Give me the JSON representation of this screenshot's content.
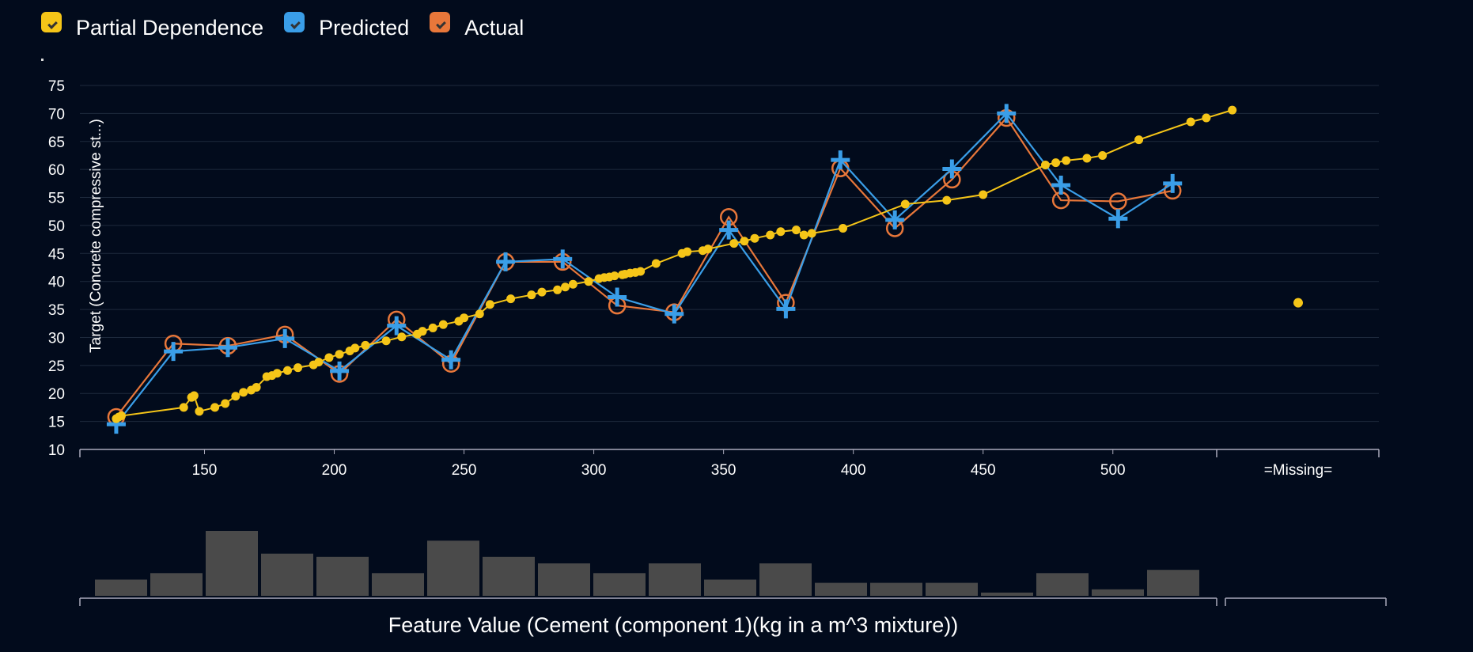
{
  "legend": {
    "items": [
      {
        "label": "Partial Dependence",
        "color": "#f5c518",
        "icon": "check-icon"
      },
      {
        "label": "Predicted",
        "color": "#3a9ee8",
        "icon": "check-icon"
      },
      {
        "label": "Actual",
        "color": "#e8773a",
        "icon": "check-icon"
      }
    ]
  },
  "chart_data": {
    "type": "line",
    "ylabel": "Target (Concrete compressive st...)",
    "xlabel": "Feature Value (Cement (component 1)(kg in a m^3 mixture))",
    "ylim": [
      10,
      75
    ],
    "yticks": [
      10,
      15,
      20,
      25,
      30,
      35,
      40,
      45,
      50,
      55,
      60,
      65,
      70,
      75
    ],
    "xlim": [
      102,
      540
    ],
    "xticks": [
      150,
      200,
      250,
      300,
      350,
      400,
      450,
      500
    ],
    "missing_label": "=Missing=",
    "grid": true,
    "legend_position": "top-left",
    "series": [
      {
        "name": "Partial Dependence",
        "color": "#f5c518",
        "x": [
          116,
          117,
          118,
          142,
          145,
          146,
          148,
          154,
          158,
          162,
          165,
          168,
          170,
          174,
          176,
          178,
          182,
          186,
          192,
          194,
          198,
          202,
          206,
          208,
          212,
          220,
          226,
          232,
          234,
          238,
          242,
          248,
          250,
          256,
          260,
          268,
          276,
          280,
          286,
          289,
          292,
          298,
          302,
          304,
          306,
          308,
          311,
          312,
          314,
          316,
          318,
          324,
          334,
          336,
          342,
          344,
          354,
          358,
          362,
          368,
          372,
          378,
          381,
          384,
          396,
          420,
          436,
          450,
          474,
          478,
          482,
          490,
          496,
          510,
          530,
          536,
          546
        ],
        "y": [
          15.5,
          15.8,
          16,
          17.5,
          19.3,
          19.6,
          16.8,
          17.5,
          18.2,
          19.5,
          20.2,
          20.6,
          21.1,
          23,
          23.2,
          23.6,
          24.1,
          24.6,
          25.1,
          25.6,
          26.4,
          27,
          27.6,
          28.1,
          28.6,
          29.4,
          30.1,
          30.6,
          31.1,
          31.7,
          32.3,
          32.9,
          33.5,
          34.2,
          35.9,
          36.9,
          37.6,
          38.1,
          38.5,
          39,
          39.5,
          40,
          40.5,
          40.7,
          40.8,
          41,
          41.2,
          41.3,
          41.5,
          41.6,
          41.8,
          43.2,
          45,
          45.3,
          45.5,
          45.8,
          46.8,
          47.2,
          47.7,
          48.3,
          48.9,
          49.2,
          48.3,
          48.6,
          49.5,
          53.8,
          54.5,
          55.5,
          60.8,
          61.2,
          61.6,
          62,
          62.5,
          65.3,
          68.5,
          69.2,
          70.6
        ],
        "missing_value": 36.2
      },
      {
        "name": "Predicted",
        "color": "#3a9ee8",
        "x": [
          116,
          138,
          159,
          181,
          202,
          224,
          245,
          266,
          288,
          309,
          331,
          352,
          374,
          395,
          416,
          438,
          459,
          480,
          502,
          523
        ],
        "y": [
          14.5,
          27.5,
          28.2,
          29.8,
          24,
          32.1,
          26,
          43.5,
          44,
          37.2,
          34.2,
          49.2,
          35.1,
          61.7,
          51,
          60.1,
          70,
          57.2,
          51.2,
          57.5
        ]
      },
      {
        "name": "Actual",
        "color": "#e8773a",
        "x": [
          116,
          138,
          159,
          181,
          202,
          224,
          245,
          266,
          288,
          309,
          331,
          352,
          374,
          395,
          416,
          438,
          459,
          480,
          502,
          523
        ],
        "y": [
          15.8,
          28.9,
          28.5,
          30.5,
          23.5,
          33.2,
          25.3,
          43.5,
          43.5,
          35.7,
          34.5,
          51.5,
          36.2,
          60.2,
          49.5,
          58.2,
          69.2,
          54.5,
          54.3,
          56.2
        ]
      }
    ],
    "histogram": {
      "type": "bar",
      "values": [
        2.5,
        3.5,
        10,
        6.5,
        6,
        3.5,
        8.5,
        6,
        5,
        3.5,
        5,
        2.5,
        5,
        2,
        2,
        2,
        0.5,
        3.5,
        1,
        4
      ]
    }
  }
}
